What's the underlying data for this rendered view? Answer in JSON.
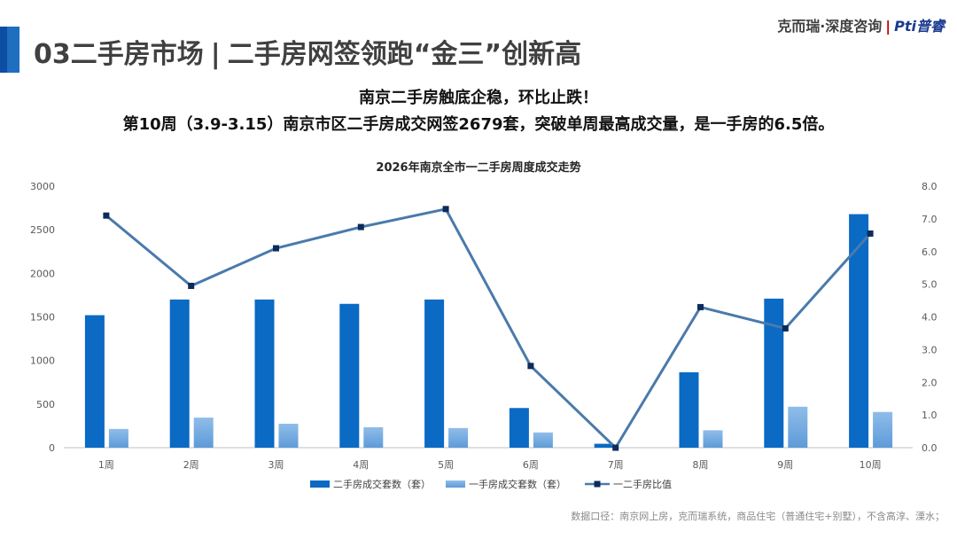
{
  "header": {
    "title_section": "03二手房市场",
    "title_sep": "|",
    "title_topic": "二手房网签领跑“金三”创新高",
    "brand_name": "克而瑞·深度咨询",
    "brand_sep": "|",
    "brand_logo": "Pti普睿"
  },
  "headline": {
    "line1": "南京二手房触底企稳，环比止跌！",
    "line2": "第10周（3.9-3.15）南京市区二手房成交网签2679套，突破单周最高成交量，是一手房的6.5倍。"
  },
  "footnote": "数据口径：南京网上房，克而瑞系统，商品住宅（普通住宅+别墅），不含高淳、溧水；",
  "colors": {
    "bar_second_hand": "#0a6ac4",
    "bar_new": "#8fbde9",
    "line_ratio": "#4a7aac",
    "marker": "#0d2b5a"
  },
  "chart_data": {
    "type": "bar",
    "title": "2026年南京全市一二手房周度成交走势",
    "categories": [
      "1周",
      "2周",
      "3周",
      "4周",
      "5周",
      "6周",
      "7周",
      "8周",
      "9周",
      "10周"
    ],
    "series": [
      {
        "name": "二手房成交套数（套）",
        "type": "bar",
        "axis": "left",
        "values": [
          1520,
          1700,
          1700,
          1650,
          1700,
          455,
          45,
          865,
          1710,
          2679
        ]
      },
      {
        "name": "一手房成交套数（套）",
        "type": "bar",
        "axis": "left",
        "values": [
          215,
          345,
          275,
          235,
          225,
          175,
          0,
          200,
          470,
          410
        ]
      },
      {
        "name": "一二手房比值",
        "type": "line",
        "axis": "right",
        "values": [
          7.1,
          4.95,
          6.1,
          6.75,
          7.3,
          2.5,
          0.0,
          4.3,
          3.65,
          6.55
        ]
      }
    ],
    "y_left": {
      "min": 0,
      "max": 3000,
      "ticks": [
        "0",
        "500",
        "1000",
        "1500",
        "2000",
        "2500",
        "3000"
      ]
    },
    "y_right": {
      "min": 0,
      "max": 8,
      "ticks": [
        "0.0",
        "1.0",
        "2.0",
        "3.0",
        "4.0",
        "5.0",
        "6.0",
        "7.0",
        "8.0"
      ]
    },
    "grid": false,
    "legend_position": "bottom"
  }
}
